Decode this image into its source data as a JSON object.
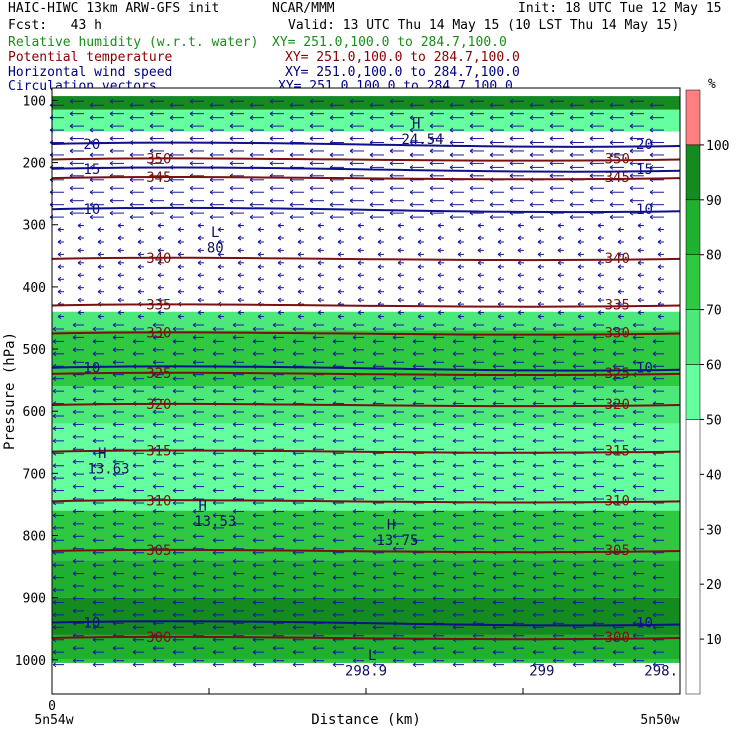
{
  "header": {
    "title": "HAIC-HIWC 13km ARW-GFS init",
    "org": "NCAR/MMM",
    "init": "Init: 18 UTC Tue 12 May 15",
    "fcst": "Fcst:   43 h",
    "valid": "Valid: 13 UTC Thu 14 May 15 (10 LST Thu 14 May 15)"
  },
  "fields": [
    {
      "name": "Relative humidity (w.r.t. water)",
      "xy": "XY= 251.0,100.0 to 284.7,100.0",
      "color": "#1a8c1a"
    },
    {
      "name": "Potential temperature",
      "xy": "XY= 251.0,100.0 to 284.7,100.0",
      "color": "#8b0000"
    },
    {
      "name": "Horizontal wind speed",
      "xy": "XY= 251.0,100.0 to 284.7,100.0",
      "color": "#000080"
    },
    {
      "name": "Circulation vectors",
      "xy": "XY= 251.0,100.0 to 284.7,100.0",
      "color": "#00008b"
    }
  ],
  "chart_data": {
    "type": "heatmap",
    "xlabel": "Distance (km)",
    "ylabel": "Pressure (hPa)",
    "x_ticks": [
      "0"
    ],
    "x_end_labels": [
      "5n54w",
      "5n50w"
    ],
    "y_ticks": [
      100,
      200,
      300,
      400,
      500,
      600,
      700,
      800,
      900,
      1000
    ],
    "colorbar": {
      "unit": "%",
      "ticks": [
        10,
        20,
        30,
        40,
        50,
        60,
        70,
        80,
        90,
        100
      ],
      "levels": [
        {
          "from": 0,
          "to": 50,
          "color": "#ffffff"
        },
        {
          "from": 50,
          "to": 60,
          "color": "#66ffa0"
        },
        {
          "from": 60,
          "to": 70,
          "color": "#4de87a"
        },
        {
          "from": 70,
          "to": 80,
          "color": "#2fc842"
        },
        {
          "from": 80,
          "to": 90,
          "color": "#20b030"
        },
        {
          "from": 90,
          "to": 100,
          "color": "#158a20"
        },
        {
          "from": 100,
          "to": 110,
          "color": "#ff8080"
        }
      ]
    },
    "rh_layers": [
      {
        "p_top": 80,
        "p_bottom": 93,
        "rh": 110
      },
      {
        "p_top": 93,
        "p_bottom": 115,
        "rh": 95
      },
      {
        "p_top": 115,
        "p_bottom": 150,
        "rh": 55
      },
      {
        "p_top": 150,
        "p_bottom": 440,
        "rh": 0
      },
      {
        "p_top": 440,
        "p_bottom": 470,
        "rh": 65
      },
      {
        "p_top": 470,
        "p_bottom": 560,
        "rh": 75
      },
      {
        "p_top": 560,
        "p_bottom": 620,
        "rh": 65
      },
      {
        "p_top": 620,
        "p_bottom": 760,
        "rh": 55
      },
      {
        "p_top": 760,
        "p_bottom": 840,
        "rh": 75
      },
      {
        "p_top": 840,
        "p_bottom": 900,
        "rh": 85
      },
      {
        "p_top": 900,
        "p_bottom": 960,
        "rh": 95
      },
      {
        "p_top": 960,
        "p_bottom": 1000,
        "rh": 85
      },
      {
        "p_top": 1000,
        "p_bottom": 1010,
        "rh": 75
      }
    ],
    "theta_contours": [
      {
        "value": 350,
        "p": 195,
        "labels": [
          "350",
          "350"
        ]
      },
      {
        "value": 345,
        "p": 225,
        "labels": [
          "345",
          "345"
        ]
      },
      {
        "value": 340,
        "p": 355,
        "labels": [
          "340",
          "340"
        ]
      },
      {
        "value": 335,
        "p": 430,
        "labels": [
          "335",
          "335"
        ]
      },
      {
        "value": 330,
        "p": 475,
        "labels": [
          "330",
          "330"
        ]
      },
      {
        "value": 325,
        "p": 540,
        "labels": [
          "325",
          "325"
        ]
      },
      {
        "value": 320,
        "p": 590,
        "labels": [
          "320",
          "320"
        ]
      },
      {
        "value": 315,
        "p": 665,
        "labels": [
          "315",
          "315"
        ]
      },
      {
        "value": 310,
        "p": 745,
        "labels": [
          "310",
          "310"
        ]
      },
      {
        "value": 305,
        "p": 825,
        "labels": [
          "305",
          "305"
        ]
      },
      {
        "value": 300,
        "p": 965,
        "labels": [
          "300",
          "300"
        ]
      }
    ],
    "wind_contours": [
      {
        "value": 10,
        "p": 275,
        "labels": [
          "10",
          "10"
        ]
      },
      {
        "value": 15,
        "p": 210,
        "labels": [
          "15",
          "15"
        ]
      },
      {
        "value": 20,
        "p": 170,
        "labels": [
          "20",
          "20"
        ]
      },
      {
        "value": 10,
        "p": 530,
        "labels": [
          "10",
          "10"
        ]
      },
      {
        "value": 10,
        "p": 940,
        "labels": [
          "10",
          "10"
        ]
      }
    ],
    "annotations": [
      {
        "text": "L",
        "x": 0.26,
        "p": 320
      },
      {
        "text": "80",
        "x": 0.26,
        "p": 345
      },
      {
        "text": "H",
        "x": 0.08,
        "p": 675
      },
      {
        "text": "13.63",
        "x": 0.09,
        "p": 700
      },
      {
        "text": "H",
        "x": 0.24,
        "p": 760
      },
      {
        "text": "13.53",
        "x": 0.26,
        "p": 785
      },
      {
        "text": "H",
        "x": 0.54,
        "p": 790
      },
      {
        "text": "13.75",
        "x": 0.55,
        "p": 815
      },
      {
        "text": "H",
        "x": 0.58,
        "p": 145
      },
      {
        "text": "24.54",
        "x": 0.59,
        "p": 170
      },
      {
        "text": "L",
        "x": 0.51,
        "p": 1000
      },
      {
        "text": "298.9",
        "x": 0.5,
        "p": 1025
      },
      {
        "text": "299",
        "x": 0.78,
        "p": 1025
      },
      {
        "text": "298.",
        "x": 0.97,
        "p": 1025
      }
    ]
  }
}
